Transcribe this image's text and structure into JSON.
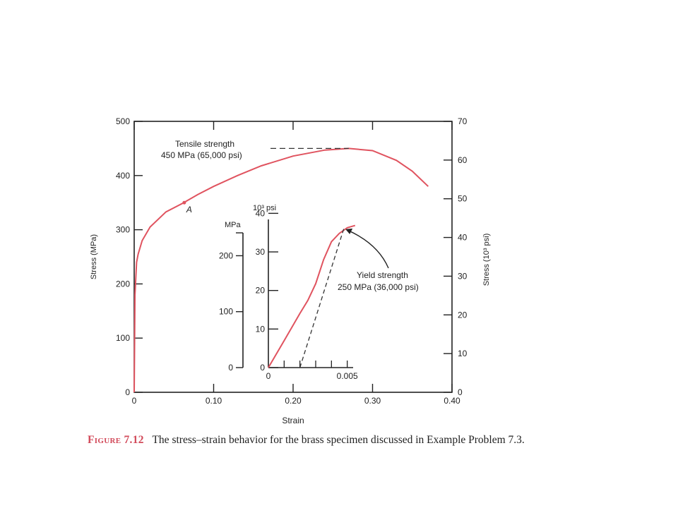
{
  "colors": {
    "curve": "#e0535f",
    "axis": "#222222",
    "dash": "#333333",
    "caption_label": "#d24a5a"
  },
  "chart_data": [
    {
      "type": "line",
      "xlabel": "Strain",
      "ylabel": "Stress (MPa)",
      "ylabel_right": "Stress (10³ psi)",
      "xlim": [
        0,
        0.4
      ],
      "ylim": [
        0,
        500
      ],
      "ylim_right": [
        0,
        70
      ],
      "x_ticks": [
        "0",
        "0.10",
        "0.20",
        "0.30",
        "0.40"
      ],
      "y_ticks": [
        "0",
        "100",
        "200",
        "300",
        "400",
        "500"
      ],
      "y_ticks_right": [
        "0",
        "10",
        "20",
        "30",
        "40",
        "50",
        "60",
        "70"
      ],
      "grid": false,
      "x": [
        0,
        0.001,
        0.003,
        0.005,
        0.01,
        0.02,
        0.04,
        0.06,
        0.08,
        0.1,
        0.13,
        0.16,
        0.2,
        0.24,
        0.27,
        0.3,
        0.33,
        0.35,
        0.37
      ],
      "y": [
        0,
        180,
        240,
        255,
        280,
        305,
        333,
        348,
        365,
        380,
        400,
        418,
        436,
        447,
        450,
        446,
        428,
        408,
        380
      ],
      "point_label": {
        "text": "A",
        "x": 0.063,
        "y": 350
      },
      "annotation": {
        "line1": "Tensile strength",
        "line2": "450 MPa (65,000 psi)",
        "x": 0.27,
        "y": 450
      }
    },
    {
      "type": "line",
      "xlabel": "",
      "ylabel": "MPa",
      "ylabel_psi": "10³ psi",
      "xlim": [
        0,
        0.006
      ],
      "ylim": [
        0,
        275
      ],
      "x_ticks": [
        "0",
        "0.005"
      ],
      "y_ticks_mpa": [
        "0",
        "100",
        "200"
      ],
      "y_ticks_psi": [
        "0",
        "10",
        "20",
        "30",
        "40"
      ],
      "x": [
        0,
        0.001,
        0.002,
        0.0025,
        0.003,
        0.0035,
        0.004,
        0.0045,
        0.005,
        0.0055
      ],
      "y": [
        0,
        48,
        97,
        120,
        150,
        193,
        225,
        240,
        250,
        254
      ],
      "offset_line": {
        "x": [
          0.002,
          0.0048
        ],
        "y": [
          0,
          250
        ]
      },
      "annotation": {
        "line1": "Yield strength",
        "line2": "250 MPa (36,000 psi)",
        "x": 0.0048,
        "y": 250
      }
    }
  ],
  "caption": {
    "label": "Figure 7.12",
    "text": "The stress–strain behavior for the brass specimen discussed in Example Problem 7.3."
  }
}
